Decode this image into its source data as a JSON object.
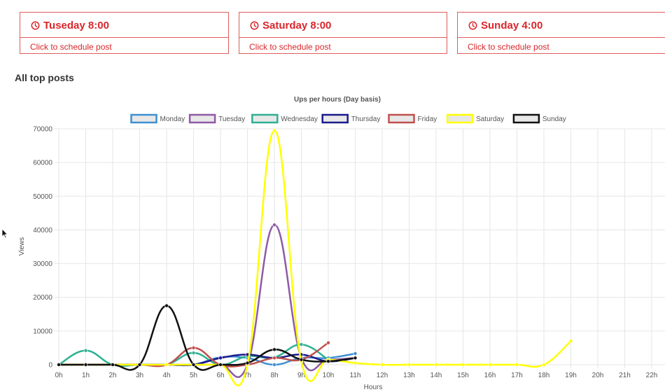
{
  "cards": [
    {
      "title": "Tuseday 8:00",
      "link": "Click to schedule post"
    },
    {
      "title": "Saturday 8:00",
      "link": "Click to schedule post"
    },
    {
      "title": "Sunday 4:00",
      "link": "Click to schedule post"
    }
  ],
  "icons": {
    "card": "clock-icon",
    "pointer": "mouse-cursor-icon"
  },
  "colors": {
    "accent": "#d9262b",
    "card_border": "#e05c5c"
  },
  "section_title": "All top posts",
  "chart_data": {
    "type": "line",
    "title": "Ups per hours (Day basis)",
    "xlabel": "Hours",
    "ylabel": "Views",
    "ylim": [
      0,
      70000
    ],
    "yticks": [
      0,
      10000,
      20000,
      30000,
      40000,
      50000,
      60000,
      70000
    ],
    "grid": true,
    "legend_position": "top",
    "categories": [
      "0h",
      "1h",
      "2h",
      "3h",
      "4h",
      "5h",
      "6h",
      "7h",
      "8h",
      "9h",
      "10h",
      "11h",
      "12h",
      "13h",
      "14h",
      "15h",
      "16h",
      "17h",
      "18h",
      "19h",
      "20h",
      "21h",
      "22h"
    ],
    "series": [
      {
        "name": "Monday",
        "color": "#3e8fd1",
        "values": [
          0,
          0,
          0,
          0,
          0,
          0,
          2200,
          2000,
          0,
          2000,
          2000,
          3300,
          null,
          null,
          null,
          null,
          null,
          null,
          null,
          null,
          null,
          null,
          null
        ]
      },
      {
        "name": "Tuesday",
        "color": "#8e5ba6",
        "values": [
          0,
          0,
          0,
          0,
          0,
          0,
          0,
          0,
          41500,
          2000,
          1500,
          2000,
          null,
          null,
          null,
          null,
          null,
          null,
          null,
          null,
          null,
          null,
          null
        ]
      },
      {
        "name": "Wednesday",
        "color": "#2eb093",
        "values": [
          0,
          4200,
          0,
          0,
          0,
          3500,
          0,
          2500,
          2200,
          6000,
          1500,
          null,
          null,
          null,
          null,
          null,
          null,
          null,
          null,
          null,
          null,
          null,
          null
        ]
      },
      {
        "name": "Thursday",
        "color": "#1a1a8c",
        "values": [
          0,
          0,
          0,
          0,
          0,
          0,
          2000,
          3000,
          2000,
          3000,
          1000,
          2000,
          null,
          null,
          null,
          null,
          null,
          null,
          null,
          null,
          null,
          null,
          null
        ]
      },
      {
        "name": "Friday",
        "color": "#c0504d",
        "values": [
          0,
          0,
          0,
          0,
          0,
          5000,
          0,
          0,
          2000,
          1500,
          6500,
          null,
          null,
          null,
          null,
          null,
          null,
          null,
          null,
          null,
          null,
          null,
          null
        ]
      },
      {
        "name": "Saturday",
        "color": "#ffff00",
        "values": [
          0,
          0,
          0,
          0,
          0,
          0,
          0,
          0,
          69500,
          1000,
          1500,
          500,
          0,
          0,
          0,
          0,
          0,
          0,
          0,
          7000,
          null,
          null,
          null
        ]
      },
      {
        "name": "Sunday",
        "color": "#111111",
        "values": [
          0,
          0,
          0,
          0,
          17500,
          0,
          0,
          500,
          4500,
          1500,
          1000,
          2000,
          null,
          null,
          null,
          null,
          null,
          null,
          null,
          null,
          null,
          null,
          null
        ]
      }
    ]
  }
}
